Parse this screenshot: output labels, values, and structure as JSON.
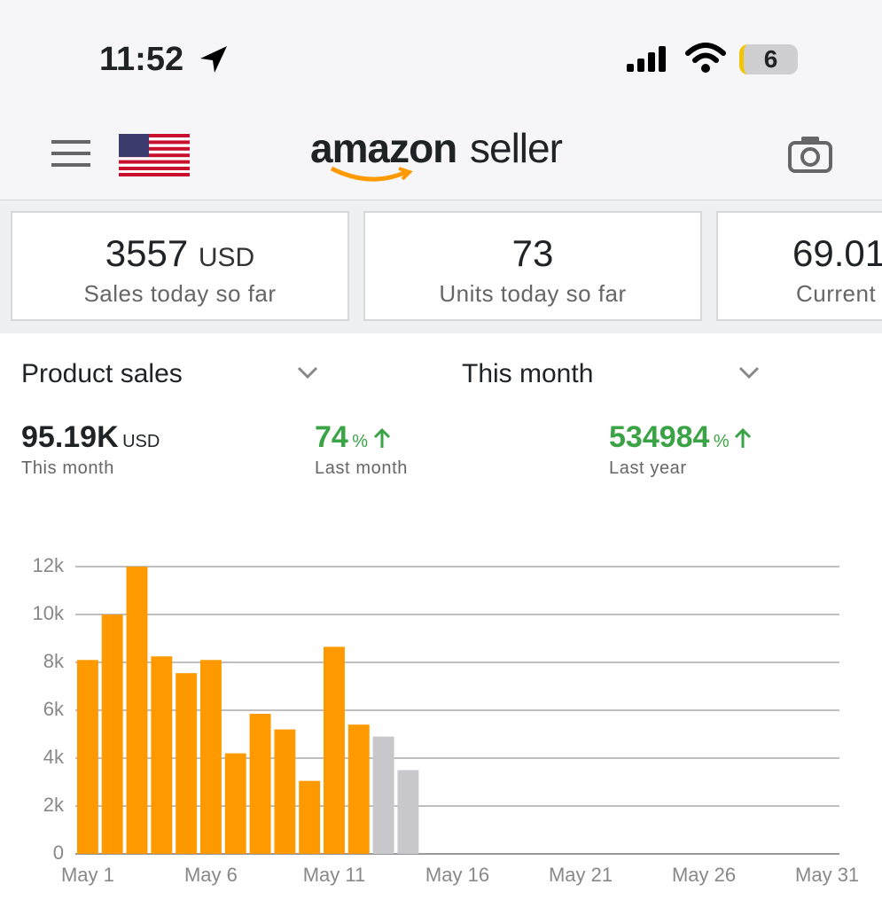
{
  "status_bar": {
    "time": "11:52",
    "battery": "6"
  },
  "header": {
    "logo_brand": "amazon",
    "logo_suffix": "seller"
  },
  "cards": [
    {
      "value": "3557",
      "unit": "USD",
      "label": "Sales today so far"
    },
    {
      "value": "73",
      "label": "Units today so far"
    },
    {
      "value": "69.01",
      "label": "Current"
    }
  ],
  "selectors": {
    "metric": "Product sales",
    "period": "This month"
  },
  "summary": [
    {
      "value": "95.19K",
      "unit": "USD",
      "label": "This month"
    },
    {
      "value": "74",
      "unit": "%",
      "label": "Last month"
    },
    {
      "value": "534984",
      "unit": "%",
      "label": "Last year"
    }
  ],
  "chart_data": {
    "type": "bar",
    "x": [
      1,
      2,
      3,
      4,
      5,
      6,
      7,
      8,
      9,
      10,
      11,
      12,
      13,
      14
    ],
    "values": [
      8100,
      10000,
      12000,
      8250,
      7550,
      8100,
      4200,
      5850,
      5200,
      3050,
      8650,
      5400,
      4900,
      3500
    ],
    "colors": [
      "#ff9900",
      "#ff9900",
      "#ff9900",
      "#ff9900",
      "#ff9900",
      "#ff9900",
      "#ff9900",
      "#ff9900",
      "#ff9900",
      "#ff9900",
      "#ff9900",
      "#ff9900",
      "#c8c8cc",
      "#c8c8cc"
    ],
    "xlim": [
      0.5,
      31.5
    ],
    "xticks": [
      {
        "value": 1,
        "label": "May 1"
      },
      {
        "value": 6,
        "label": "May 6"
      },
      {
        "value": 11,
        "label": "May 11"
      },
      {
        "value": 16,
        "label": "May 16"
      },
      {
        "value": 21,
        "label": "May 21"
      },
      {
        "value": 26,
        "label": "May 26"
      },
      {
        "value": 31,
        "label": "May 31"
      }
    ],
    "ylim": [
      0,
      12000
    ],
    "yticks": [
      0,
      {
        "value": 2000,
        "label": "2k"
      },
      {
        "value": 4000,
        "label": "4k"
      },
      {
        "value": 6000,
        "label": "6k"
      },
      {
        "value": 8000,
        "label": "8k"
      },
      {
        "value": 10000,
        "label": "10k"
      },
      {
        "value": 12000,
        "label": "12k"
      }
    ],
    "grid": true
  }
}
